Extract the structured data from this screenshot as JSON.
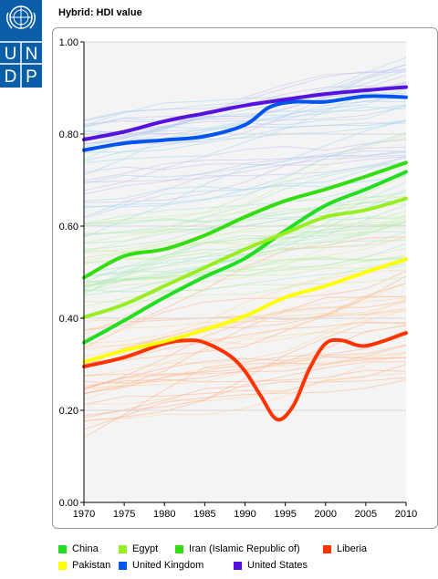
{
  "logo": {
    "text": "UNDP",
    "letters": [
      "U",
      "N",
      "D",
      "P"
    ],
    "color": "#0a5ea8",
    "icon": "un-emblem-icon"
  },
  "chart_data": {
    "type": "line",
    "title": "Hybrid: HDI value",
    "xlabel": "",
    "ylabel": "",
    "xlim": [
      1970,
      2010
    ],
    "ylim": [
      0,
      1
    ],
    "x_ticks": [
      "1970",
      "1975",
      "1980",
      "1985",
      "1990",
      "1995",
      "2000",
      "2005",
      "2010"
    ],
    "y_ticks": [
      "0.00",
      "0.20",
      "0.40",
      "0.60",
      "0.80",
      "1.00"
    ],
    "grid": true,
    "legend_position": "bottom",
    "background_series": "faint lines for other countries",
    "series": [
      {
        "name": "China",
        "color": "#22dd22",
        "x": [
          1970,
          1975,
          1980,
          1985,
          1990,
          1995,
          2000,
          2005,
          2010
        ],
        "values": [
          0.347,
          0.395,
          0.445,
          0.49,
          0.53,
          0.59,
          0.645,
          0.68,
          0.718
        ]
      },
      {
        "name": "Egypt",
        "color": "#99ee22",
        "x": [
          1970,
          1975,
          1980,
          1985,
          1990,
          1995,
          2000,
          2005,
          2010
        ],
        "values": [
          0.402,
          0.43,
          0.47,
          0.51,
          0.55,
          0.585,
          0.62,
          0.635,
          0.66
        ]
      },
      {
        "name": "Iran (Islamic Republic of)",
        "color": "#33dd11",
        "x": [
          1970,
          1975,
          1980,
          1985,
          1990,
          1995,
          2000,
          2005,
          2010
        ],
        "values": [
          0.488,
          0.535,
          0.55,
          0.58,
          0.62,
          0.655,
          0.68,
          0.708,
          0.738
        ]
      },
      {
        "name": "Liberia",
        "color": "#ff3300",
        "x": [
          1970,
          1975,
          1980,
          1983,
          1985,
          1988,
          1990,
          1992,
          1994,
          1996,
          1998,
          2000,
          2002,
          2005,
          2010
        ],
        "values": [
          0.295,
          0.315,
          0.345,
          0.352,
          0.347,
          0.32,
          0.285,
          0.23,
          0.18,
          0.21,
          0.29,
          0.345,
          0.352,
          0.34,
          0.368
        ]
      },
      {
        "name": "Pakistan",
        "color": "#ffff00",
        "x": [
          1970,
          1975,
          1980,
          1985,
          1990,
          1995,
          2000,
          2005,
          2010
        ],
        "values": [
          0.305,
          0.33,
          0.35,
          0.375,
          0.405,
          0.445,
          0.47,
          0.5,
          0.528
        ]
      },
      {
        "name": "United Kingdom",
        "color": "#0055ee",
        "x": [
          1970,
          1975,
          1980,
          1985,
          1990,
          1993,
          1996,
          2000,
          2005,
          2010
        ],
        "values": [
          0.765,
          0.78,
          0.787,
          0.795,
          0.82,
          0.858,
          0.87,
          0.87,
          0.882,
          0.88
        ]
      },
      {
        "name": "United States",
        "color": "#5511dd",
        "x": [
          1970,
          1975,
          1980,
          1985,
          1990,
          1995,
          2000,
          2005,
          2010
        ],
        "values": [
          0.788,
          0.805,
          0.828,
          0.845,
          0.862,
          0.875,
          0.887,
          0.895,
          0.902
        ]
      }
    ]
  },
  "legend": [
    {
      "name": "China",
      "color": "#22dd22"
    },
    {
      "name": "Egypt",
      "color": "#99ee22"
    },
    {
      "name": "Iran (Islamic Republic of)",
      "color": "#33dd11"
    },
    {
      "name": "Liberia",
      "color": "#ff3300"
    },
    {
      "name": "Pakistan",
      "color": "#ffff00"
    },
    {
      "name": "United Kingdom",
      "color": "#0055ee"
    },
    {
      "name": "United States",
      "color": "#5511dd"
    }
  ]
}
